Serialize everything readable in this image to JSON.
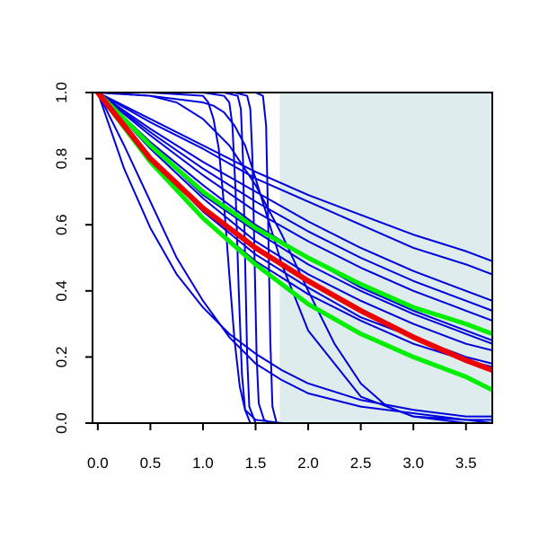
{
  "chart_data": {
    "type": "line",
    "title": "",
    "xlabel": "",
    "ylabel": "",
    "xlim": [
      -0.05,
      3.75
    ],
    "ylim": [
      0.0,
      1.0
    ],
    "x_ticks": [
      "0.0",
      "0.5",
      "1.0",
      "1.5",
      "2.0",
      "2.5",
      "3.0",
      "3.5"
    ],
    "y_ticks": [
      "0.0",
      "0.2",
      "0.4",
      "0.6",
      "0.8",
      "1.0"
    ],
    "shaded_region": {
      "x_start": 1.73,
      "x_end": 3.75,
      "color": "#deeced"
    },
    "grid": false,
    "legend": "none",
    "series": [
      {
        "color": "#0000dd",
        "width": 2,
        "x": [
          0,
          0.5,
          1.0,
          1.5,
          2.0,
          2.5,
          3.0,
          3.5,
          3.75
        ],
        "y": [
          1.0,
          0.84,
          0.69,
          0.58,
          0.48,
          0.4,
          0.33,
          0.27,
          0.24
        ]
      },
      {
        "color": "#0000dd",
        "width": 2,
        "x": [
          0,
          0.5,
          1.0,
          1.5,
          2.0,
          2.5,
          3.0,
          3.5,
          3.75
        ],
        "y": [
          1.0,
          0.87,
          0.75,
          0.64,
          0.55,
          0.47,
          0.4,
          0.34,
          0.31
        ]
      },
      {
        "color": "#0000dd",
        "width": 2,
        "x": [
          0,
          0.5,
          1.0,
          1.5,
          2.0,
          2.5,
          3.0,
          3.5,
          3.75
        ],
        "y": [
          1.0,
          0.88,
          0.77,
          0.67,
          0.58,
          0.5,
          0.43,
          0.37,
          0.34
        ]
      },
      {
        "color": "#0000dd",
        "width": 2,
        "x": [
          0,
          0.5,
          1.0,
          1.5,
          2.0,
          2.5,
          3.0,
          3.5,
          3.75
        ],
        "y": [
          1.0,
          0.89,
          0.79,
          0.7,
          0.61,
          0.53,
          0.46,
          0.4,
          0.37
        ]
      },
      {
        "color": "#0000dd",
        "width": 2,
        "x": [
          0,
          0.5,
          1.0,
          1.5,
          2.0,
          2.5,
          3.0,
          3.5,
          3.75
        ],
        "y": [
          1.0,
          0.91,
          0.83,
          0.74,
          0.67,
          0.6,
          0.53,
          0.48,
          0.45
        ]
      },
      {
        "color": "#0000dd",
        "width": 2,
        "x": [
          0,
          0.5,
          1.0,
          1.5,
          2.0,
          2.5,
          3.0,
          3.5,
          3.75
        ],
        "y": [
          1.0,
          0.92,
          0.84,
          0.76,
          0.69,
          0.63,
          0.57,
          0.52,
          0.49
        ]
      },
      {
        "color": "#0000dd",
        "width": 2,
        "x": [
          0,
          0.5,
          1.0,
          1.5,
          2.0,
          2.5,
          3.0,
          3.5,
          3.75
        ],
        "y": [
          1.0,
          0.85,
          0.72,
          0.6,
          0.5,
          0.41,
          0.34,
          0.28,
          0.25
        ]
      },
      {
        "color": "#0000dd",
        "width": 2,
        "x": [
          0,
          0.5,
          1.0,
          1.5,
          2.0,
          2.5,
          3.0,
          3.5,
          3.75
        ],
        "y": [
          1.0,
          0.83,
          0.68,
          0.55,
          0.45,
          0.37,
          0.3,
          0.24,
          0.22
        ]
      },
      {
        "color": "#0000dd",
        "width": 2,
        "x": [
          0,
          0.5,
          1.0,
          1.5,
          2.0,
          2.5,
          3.0,
          3.5,
          3.75
        ],
        "y": [
          1.0,
          0.8,
          0.64,
          0.51,
          0.41,
          0.32,
          0.26,
          0.2,
          0.18
        ]
      },
      {
        "color": "#0000dd",
        "width": 2,
        "x": [
          0,
          0.5,
          1.0,
          1.5,
          2.0,
          2.5,
          3.0,
          3.5,
          3.75
        ],
        "y": [
          1.0,
          0.79,
          0.62,
          0.49,
          0.39,
          0.31,
          0.24,
          0.19,
          0.17
        ]
      },
      {
        "color": "#0000dd",
        "width": 2,
        "x": [
          0,
          0.25,
          0.5,
          0.75,
          1.0,
          1.25,
          1.5,
          1.75,
          2.0,
          2.5,
          3.0,
          3.5,
          3.75
        ],
        "y": [
          1.0,
          0.84,
          0.67,
          0.5,
          0.37,
          0.26,
          0.18,
          0.13,
          0.09,
          0.05,
          0.03,
          0.01,
          0.01
        ]
      },
      {
        "color": "#0000dd",
        "width": 2,
        "x": [
          0,
          0.25,
          0.5,
          0.75,
          1.0,
          1.25,
          1.5,
          1.75,
          2.0,
          2.5,
          3.0,
          3.5,
          3.75
        ],
        "y": [
          1.0,
          0.77,
          0.59,
          0.45,
          0.35,
          0.27,
          0.21,
          0.16,
          0.12,
          0.07,
          0.04,
          0.02,
          0.02
        ]
      },
      {
        "color": "#0000dd",
        "width": 2,
        "x": [
          0,
          0.5,
          1.0,
          1.1,
          1.2,
          1.3,
          1.4,
          1.5,
          1.75,
          2.0,
          2.5,
          3.0,
          3.5,
          3.75
        ],
        "y": [
          1.0,
          0.99,
          0.97,
          0.96,
          0.94,
          0.9,
          0.84,
          0.74,
          0.48,
          0.28,
          0.08,
          0.02,
          0.01,
          0.0
        ]
      },
      {
        "color": "#0000dd",
        "width": 2,
        "x": [
          0,
          0.5,
          0.75,
          1.0,
          1.25,
          1.5,
          1.75,
          2.0,
          2.25,
          2.5,
          2.75,
          3.0,
          3.5,
          3.75
        ],
        "y": [
          1.0,
          0.99,
          0.97,
          0.92,
          0.84,
          0.72,
          0.57,
          0.4,
          0.24,
          0.12,
          0.05,
          0.02,
          0.0,
          0.0
        ]
      },
      {
        "color": "#0000dd",
        "width": 2,
        "x": [
          0,
          0.5,
          1.0,
          1.05,
          1.1,
          1.15,
          1.2,
          1.25,
          1.3,
          1.35,
          1.4,
          1.5,
          1.75,
          2.0,
          3.75
        ],
        "y": [
          1.0,
          1.0,
          0.99,
          0.97,
          0.92,
          0.83,
          0.66,
          0.45,
          0.25,
          0.11,
          0.04,
          0.01,
          0.0,
          0.0,
          0.0
        ]
      },
      {
        "color": "#0000dd",
        "width": 2,
        "x": [
          0,
          1.0,
          1.2,
          1.25,
          1.28,
          1.31,
          1.34,
          1.37,
          1.4,
          1.45,
          1.5,
          3.75
        ],
        "y": [
          1.0,
          1.0,
          0.99,
          0.97,
          0.9,
          0.7,
          0.4,
          0.15,
          0.04,
          0.0,
          0.0,
          0.0
        ]
      },
      {
        "color": "#0000dd",
        "width": 2,
        "x": [
          0,
          1.2,
          1.33,
          1.36,
          1.38,
          1.4,
          1.42,
          1.44,
          1.5,
          3.75
        ],
        "y": [
          1.0,
          1.0,
          0.99,
          0.95,
          0.8,
          0.5,
          0.2,
          0.05,
          0.0,
          0.0
        ]
      },
      {
        "color": "#0000dd",
        "width": 2,
        "x": [
          0,
          1.3,
          1.42,
          1.45,
          1.47,
          1.49,
          1.51,
          1.53,
          1.58,
          1.65,
          3.75
        ],
        "y": [
          1.0,
          1.0,
          0.99,
          0.95,
          0.8,
          0.5,
          0.2,
          0.06,
          0.01,
          0.0,
          0.0
        ]
      },
      {
        "color": "#0000dd",
        "width": 2,
        "x": [
          0,
          1.5,
          1.57,
          1.6,
          1.62,
          1.64,
          1.66,
          1.7,
          3.75
        ],
        "y": [
          1.0,
          1.0,
          0.99,
          0.9,
          0.6,
          0.25,
          0.05,
          0.0,
          0.0
        ]
      },
      {
        "color": "#00ee00",
        "width": 5,
        "x": [
          0,
          0.5,
          1.0,
          1.5,
          2.0,
          2.5,
          3.0,
          3.5,
          3.75
        ],
        "y": [
          1.0,
          0.84,
          0.7,
          0.59,
          0.5,
          0.42,
          0.35,
          0.3,
          0.27
        ]
      },
      {
        "color": "#00ee00",
        "width": 5,
        "x": [
          0,
          0.5,
          1.0,
          1.5,
          2.0,
          2.5,
          3.0,
          3.5,
          3.75
        ],
        "y": [
          1.0,
          0.79,
          0.62,
          0.48,
          0.36,
          0.27,
          0.2,
          0.14,
          0.1
        ]
      },
      {
        "color": "#ee0000",
        "width": 6,
        "x": [
          0,
          0.5,
          1.0,
          1.5,
          2.0,
          2.5,
          3.0,
          3.5,
          3.75
        ],
        "y": [
          1.0,
          0.8,
          0.65,
          0.53,
          0.43,
          0.34,
          0.26,
          0.19,
          0.16
        ]
      }
    ]
  }
}
